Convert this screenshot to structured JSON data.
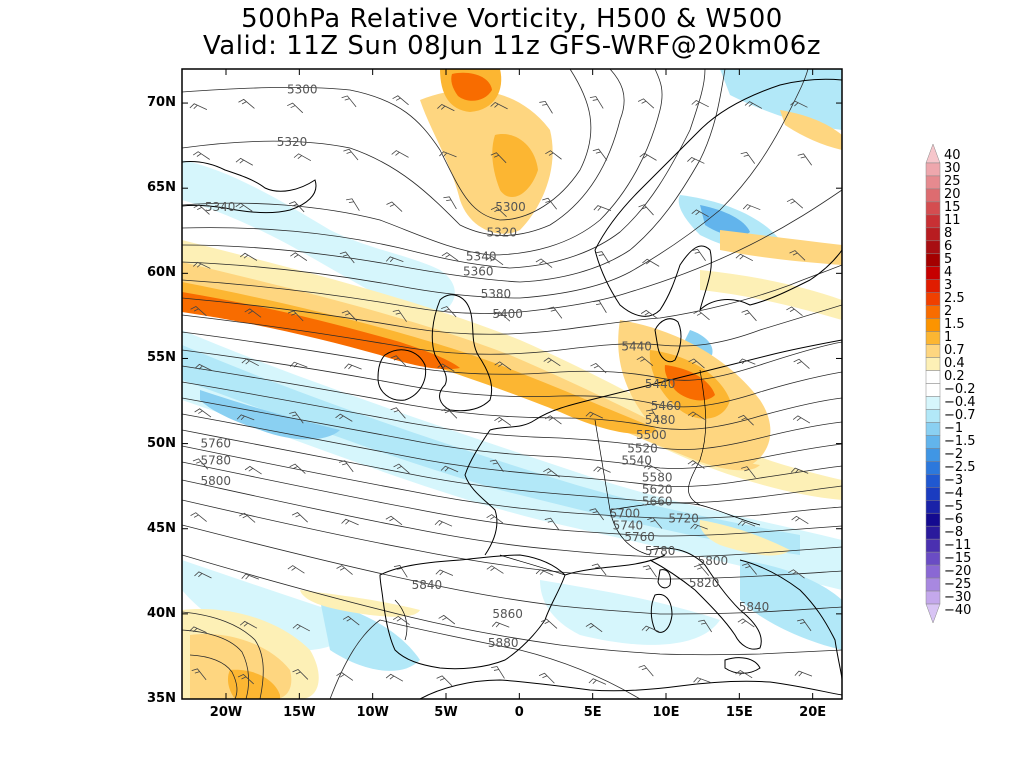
{
  "title": {
    "line1": "500hPa Relative Vorticity, H500 & W500",
    "line2": "Valid: 11Z Sun 08Jun 11z GFS-WRF@20km06z"
  },
  "axes": {
    "lat_labels": [
      "70N",
      "65N",
      "60N",
      "55N",
      "50N",
      "45N",
      "40N",
      "35N"
    ],
    "lon_labels": [
      "20W",
      "15W",
      "10W",
      "5W",
      "0",
      "5E",
      "10E",
      "15E",
      "20E"
    ]
  },
  "contour_labels": [
    {
      "text": "5300",
      "lon": -14.8,
      "lat": 70.8
    },
    {
      "text": "5320",
      "lon": -15.5,
      "lat": 67.7
    },
    {
      "text": "5340",
      "lon": -20.4,
      "lat": 63.9
    },
    {
      "text": "5300",
      "lon": -0.6,
      "lat": 63.9
    },
    {
      "text": "5320",
      "lon": -1.2,
      "lat": 62.4
    },
    {
      "text": "5340",
      "lon": -2.6,
      "lat": 61.0
    },
    {
      "text": "5360",
      "lon": -2.8,
      "lat": 60.1
    },
    {
      "text": "5380",
      "lon": -1.6,
      "lat": 58.8
    },
    {
      "text": "5400",
      "lon": -0.8,
      "lat": 57.6
    },
    {
      "text": "5440",
      "lon": 8.0,
      "lat": 55.7
    },
    {
      "text": "5440",
      "lon": 9.6,
      "lat": 53.5
    },
    {
      "text": "5460",
      "lon": 10.0,
      "lat": 52.2
    },
    {
      "text": "5480",
      "lon": 9.6,
      "lat": 51.4
    },
    {
      "text": "5500",
      "lon": 9.0,
      "lat": 50.5
    },
    {
      "text": "5520",
      "lon": 8.4,
      "lat": 49.7
    },
    {
      "text": "5540",
      "lon": 8.0,
      "lat": 49.0
    },
    {
      "text": "5580",
      "lon": 9.4,
      "lat": 48.0
    },
    {
      "text": "5620",
      "lon": 9.4,
      "lat": 47.3
    },
    {
      "text": "5660",
      "lon": 9.4,
      "lat": 46.6
    },
    {
      "text": "5700",
      "lon": 7.2,
      "lat": 45.9
    },
    {
      "text": "5720",
      "lon": 11.2,
      "lat": 45.6
    },
    {
      "text": "5740",
      "lon": 7.4,
      "lat": 45.2
    },
    {
      "text": "5760",
      "lon": 8.2,
      "lat": 44.5
    },
    {
      "text": "5780",
      "lon": 9.6,
      "lat": 43.7
    },
    {
      "text": "5800",
      "lon": 13.2,
      "lat": 43.1
    },
    {
      "text": "5820",
      "lon": 12.6,
      "lat": 41.8
    },
    {
      "text": "5840",
      "lon": 16.0,
      "lat": 40.4
    },
    {
      "text": "5760",
      "lon": -20.7,
      "lat": 50.0
    },
    {
      "text": "5780",
      "lon": -20.7,
      "lat": 49.0
    },
    {
      "text": "5800",
      "lon": -20.7,
      "lat": 47.8
    },
    {
      "text": "5840",
      "lon": -6.3,
      "lat": 41.7
    },
    {
      "text": "5860",
      "lon": -0.8,
      "lat": 40.0
    },
    {
      "text": "5880",
      "lon": -1.1,
      "lat": 38.3
    }
  ],
  "colorbar": {
    "labels": [
      "40",
      "30",
      "25",
      "20",
      "15",
      "11",
      "8",
      "6",
      "5",
      "4",
      "3",
      "2.5",
      "2",
      "1.5",
      "1",
      "0.7",
      "0.4",
      "0.2",
      "−0.2",
      "−0.4",
      "−0.7",
      "−1",
      "−1.5",
      "−2",
      "−2.5",
      "−3",
      "−4",
      "−5",
      "−6",
      "−8",
      "−11",
      "−15",
      "−20",
      "−25",
      "−30",
      "−40"
    ],
    "colors": [
      "#f6c6cb",
      "#eea7ad",
      "#e68a8f",
      "#dd6c70",
      "#d44d50",
      "#c83034",
      "#b81c20",
      "#a80e12",
      "#a40000",
      "#c60000",
      "#e01c00",
      "#f04000",
      "#f86c00",
      "#fc9400",
      "#fcb632",
      "#fed680",
      "#fdf0b6",
      "#ffffff",
      "#ffffff",
      "#d6f6fc",
      "#b2e8f8",
      "#8ad0f2",
      "#62b4ec",
      "#4096e4",
      "#2c78dc",
      "#2058d0",
      "#1a3cc0",
      "#1a22a8",
      "#140a90",
      "#2a1a9c",
      "#4a30b0",
      "#6a4cc4",
      "#8a68d4",
      "#a888e0",
      "#c4a8ec",
      "#d8c4f4"
    ]
  },
  "palette": {
    "ocean_white": "#ffffff",
    "pos_light": "#fdf0b6",
    "pos_mid": "#fed680",
    "pos_orange": "#fcb632",
    "pos_strong": "#f86c00",
    "neg_light": "#d6f6fc",
    "neg_mid": "#b2e8f8",
    "neg_strong": "#8ad0f2",
    "neg_blue": "#62b4ec"
  }
}
